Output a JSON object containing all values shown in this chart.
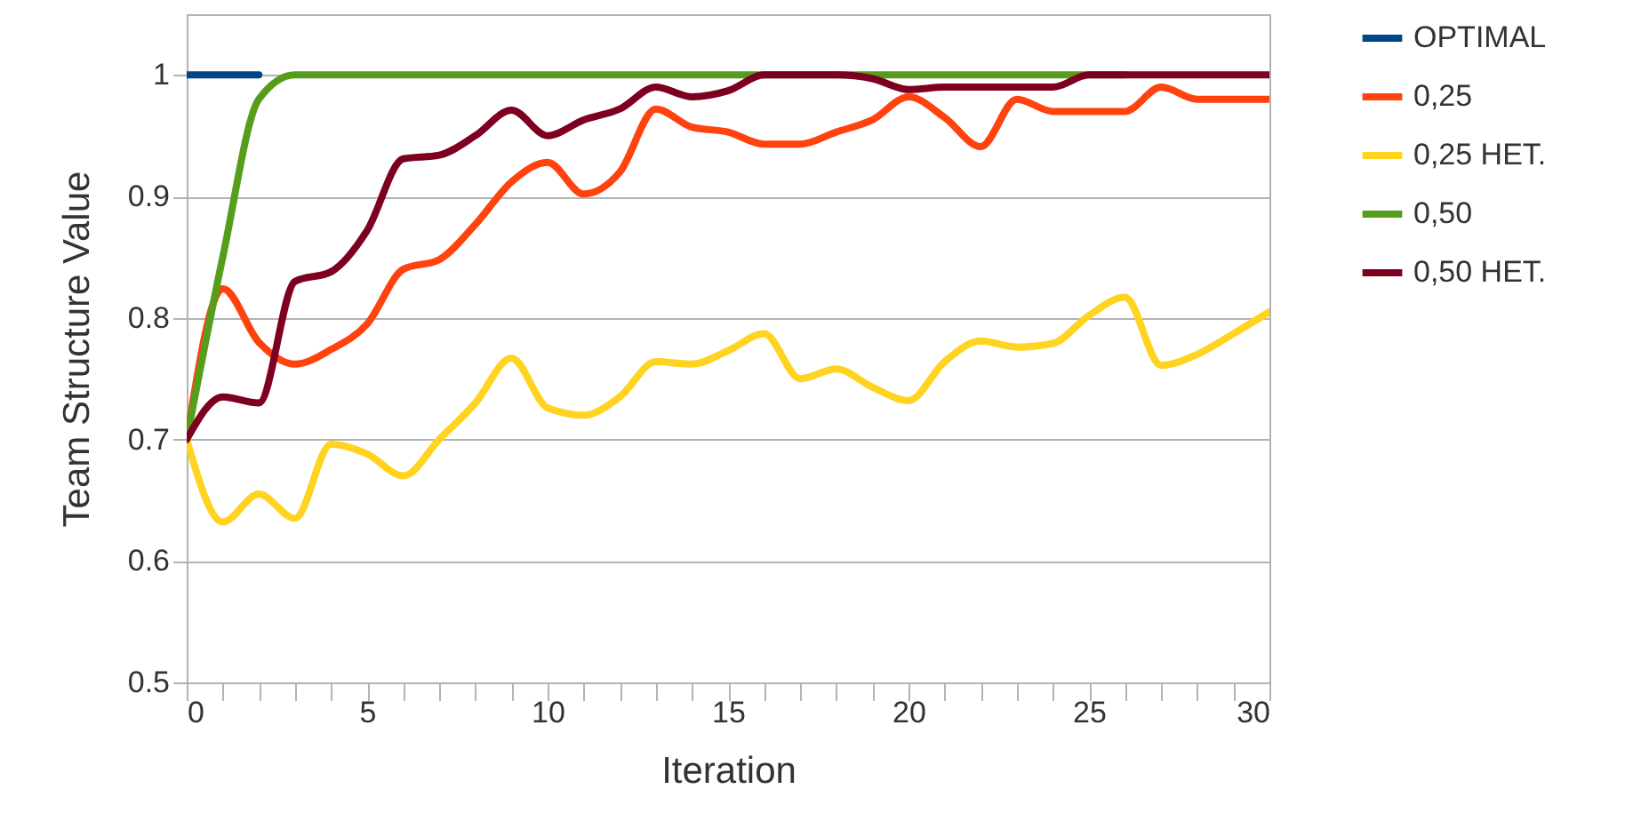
{
  "chart_data": {
    "type": "line",
    "xlabel": "Iteration",
    "ylabel": "Team Structure Value",
    "x": [
      0,
      1,
      2,
      3,
      4,
      5,
      6,
      7,
      8,
      9,
      10,
      11,
      12,
      13,
      14,
      15,
      16,
      17,
      18,
      19,
      20,
      21,
      22,
      23,
      24,
      25,
      26,
      27,
      28,
      29,
      30
    ],
    "series": [
      {
        "name": "OPTIMAL",
        "color": "#004586",
        "values": [
          1,
          1,
          1,
          null,
          null,
          null,
          null,
          null,
          null,
          null,
          null,
          null,
          null,
          null,
          null,
          null,
          null,
          null,
          null,
          null,
          null,
          null,
          null,
          null,
          null,
          null,
          null,
          null,
          null,
          null,
          null
        ]
      },
      {
        "name": "0,25",
        "color": "#ff420e",
        "values": [
          0.7,
          0.824,
          0.78,
          0.762,
          0.774,
          0.795,
          0.84,
          0.848,
          0.877,
          0.912,
          0.928,
          0.902,
          0.92,
          0.972,
          0.957,
          0.953,
          0.943,
          0.943,
          0.953,
          0.963,
          0.982,
          0.965,
          0.941,
          0.98,
          0.97,
          0.97,
          0.97,
          0.99,
          0.98,
          0.98,
          0.98
        ]
      },
      {
        "name": "0,25 HET.",
        "color": "#ffd320",
        "values": [
          0.7,
          0.632,
          0.655,
          0.635,
          0.696,
          0.688,
          0.67,
          0.7,
          0.73,
          0.767,
          0.726,
          0.72,
          0.735,
          0.764,
          0.762,
          0.773,
          0.787,
          0.75,
          0.758,
          0.743,
          0.732,
          0.764,
          0.781,
          0.776,
          0.779,
          0.802,
          0.817,
          0.761,
          0.77,
          0.787,
          0.805
        ]
      },
      {
        "name": "0,50",
        "color": "#579d1c",
        "values": [
          0.7,
          0.85,
          0.98,
          1,
          1,
          1,
          1,
          1,
          1,
          1,
          1,
          1,
          1,
          1,
          1,
          1,
          1,
          1,
          1,
          1,
          1,
          1,
          1,
          1,
          1,
          1,
          1,
          null,
          null,
          null,
          null
        ]
      },
      {
        "name": "0,50 HET.",
        "color": "#7e0021",
        "values": [
          0.7,
          0.735,
          0.73,
          0.83,
          0.838,
          0.872,
          0.931,
          0.934,
          0.95,
          0.971,
          0.95,
          0.963,
          0.972,
          0.99,
          0.982,
          0.987,
          1,
          1,
          1,
          0.997,
          0.988,
          0.99,
          0.99,
          0.99,
          0.99,
          1,
          1,
          1,
          1,
          1,
          1
        ]
      }
    ],
    "xlim": [
      0,
      30
    ],
    "xticks": [
      0,
      {
        "value": 1,
        "label": null
      },
      {
        "value": 2,
        "label": null
      },
      {
        "value": 3,
        "label": null
      },
      {
        "value": 4,
        "label": null
      },
      5,
      {
        "value": 6,
        "label": null
      },
      {
        "value": 7,
        "label": null
      },
      {
        "value": 8,
        "label": null
      },
      {
        "value": 9,
        "label": null
      },
      10,
      {
        "value": 11,
        "label": null
      },
      {
        "value": 12,
        "label": null
      },
      {
        "value": 13,
        "label": null
      },
      {
        "value": 14,
        "label": null
      },
      15,
      {
        "value": 16,
        "label": null
      },
      {
        "value": 17,
        "label": null
      },
      {
        "value": 18,
        "label": null
      },
      {
        "value": 19,
        "label": null
      },
      20,
      {
        "value": 21,
        "label": null
      },
      {
        "value": 22,
        "label": null
      },
      {
        "value": 23,
        "label": null
      },
      {
        "value": 24,
        "label": null
      },
      25,
      {
        "value": 26,
        "label": null
      },
      {
        "value": 27,
        "label": null
      },
      {
        "value": 28,
        "label": null
      },
      {
        "value": 29,
        "label": null
      },
      30
    ],
    "ylim": [
      0.5,
      1.05
    ],
    "yticks": [
      0.5,
      0.6,
      0.7,
      0.8,
      0.9,
      1
    ],
    "grid": "y",
    "legend": "right",
    "marker": "none",
    "line_style": "solid"
  }
}
